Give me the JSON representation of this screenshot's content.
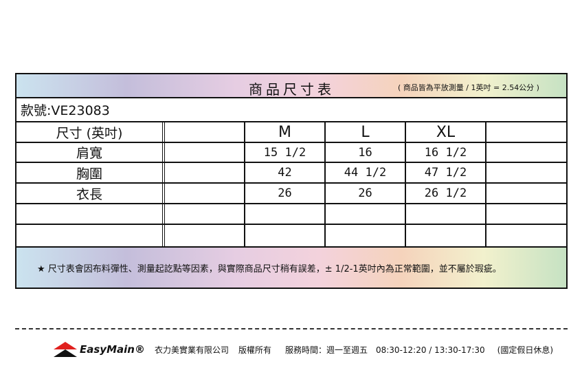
{
  "header": {
    "title": "商品尺寸表",
    "note": "( 商品皆為平放測量 / 1英吋 = 2.54公分 )"
  },
  "model": "款號:VE23083",
  "columns": [
    "尺寸 (英吋)",
    "",
    "M",
    "L",
    "XL",
    ""
  ],
  "rows": [
    [
      "肩寬",
      "",
      "15 1/2",
      "16",
      "16 1/2",
      ""
    ],
    [
      "胸圍",
      "",
      "42",
      "44 1/2",
      "47 1/2",
      ""
    ],
    [
      "衣長",
      "",
      "26",
      "26",
      "26 1/2",
      ""
    ],
    [
      "",
      "",
      "",
      "",
      "",
      ""
    ],
    [
      "",
      "",
      "",
      "",
      "",
      ""
    ]
  ],
  "footnote": "★ 尺寸表會因布料彈性、測量起訖點等因素，與實際商品尺寸稍有誤差，± 1/2-1英吋內為正常範圍，並不屬於瑕疵。",
  "footer": {
    "brand": "EasyMain®",
    "company": "衣力美實業有限公司",
    "rights": "版權所有",
    "hours": "服務時間：週一至週五　08:30-12:20 / 13:30-17:30",
    "holiday": "(國定假日休息)"
  },
  "colors": {
    "logo_red": "#e0201e",
    "logo_black": "#111111"
  }
}
